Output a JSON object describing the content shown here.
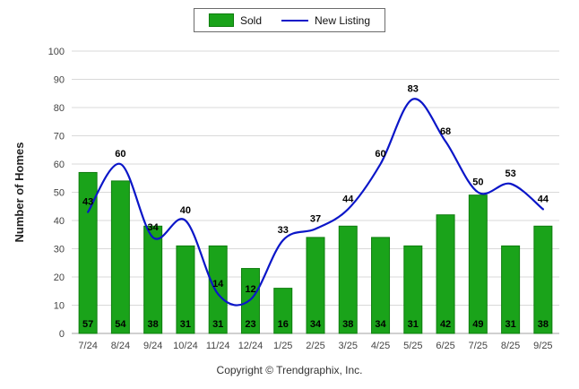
{
  "legend": {
    "sold_label": "Sold",
    "new_listing_label": "New Listing"
  },
  "footer": "Copyright © Trendgraphix, Inc.",
  "colors": {
    "sold": "#1aa31a",
    "sold_border": "#0e7d0e",
    "new_listing": "#0b16c8",
    "grid": "#d9d9d9",
    "axis_line": "#a0a0a0",
    "tick_text": "#444444",
    "value_label": "#000000",
    "axis_title": "#222222"
  },
  "chart_data": {
    "type": "bar",
    "subtype": "bar+line combo",
    "categories": [
      "7/24",
      "8/24",
      "9/24",
      "10/24",
      "11/24",
      "12/24",
      "1/25",
      "2/25",
      "3/25",
      "4/25",
      "5/25",
      "6/25",
      "7/25",
      "8/25",
      "9/25"
    ],
    "series": [
      {
        "name": "Sold",
        "type": "bar",
        "color": "#1aa31a",
        "values": [
          57,
          54,
          38,
          31,
          31,
          23,
          16,
          34,
          38,
          34,
          31,
          42,
          49,
          31,
          38
        ]
      },
      {
        "name": "New Listing",
        "type": "line",
        "color": "#0b16c8",
        "values": [
          43,
          60,
          34,
          40,
          14,
          12,
          33,
          37,
          44,
          60,
          83,
          68,
          50,
          53,
          44
        ]
      }
    ],
    "title": "",
    "xlabel": "",
    "ylabel": "Number of Homes",
    "ylim": [
      0,
      100
    ],
    "ytick_step": 10,
    "grid": true,
    "legend_position": "top"
  }
}
